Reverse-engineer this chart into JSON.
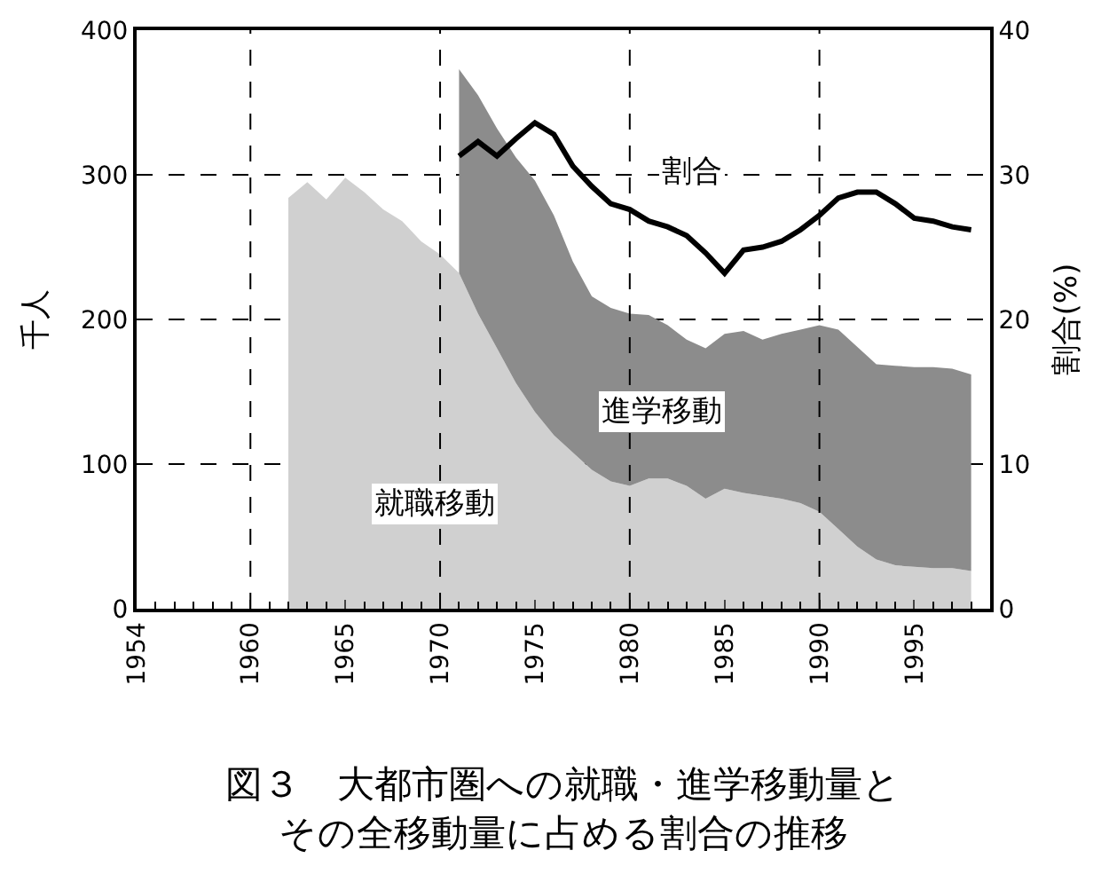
{
  "chart_data": {
    "type": "area",
    "title": "図３　大都市圏への就職・進学移動量とその全移動量に占める割合の推移",
    "ylabel": "千人",
    "y2label": "割合(%)",
    "stacked": true,
    "x": [
      1962,
      1963,
      1964,
      1965,
      1966,
      1967,
      1968,
      1969,
      1970,
      1971,
      1972,
      1973,
      1974,
      1975,
      1976,
      1977,
      1978,
      1979,
      1980,
      1981,
      1982,
      1983,
      1984,
      1985,
      1986,
      1987,
      1988,
      1989,
      1990,
      1991,
      1992,
      1993,
      1994,
      1995,
      1996,
      1997,
      1998
    ],
    "series": [
      {
        "name": "就職移動",
        "color": "#d0d0d0",
        "values": [
          284,
          295,
          283,
          298,
          288,
          276,
          268,
          254,
          245,
          232,
          204,
          180,
          156,
          136,
          120,
          108,
          96,
          88,
          85,
          90,
          90,
          85,
          76,
          83,
          80,
          78,
          76,
          73,
          67,
          55,
          43,
          34,
          30,
          29,
          28,
          28,
          26
        ]
      },
      {
        "name": "進学移動",
        "color": "#8c8c8c",
        "values": [
          null,
          null,
          null,
          null,
          null,
          null,
          null,
          null,
          null,
          141,
          151,
          152,
          156,
          160,
          152,
          132,
          120,
          120,
          119,
          113,
          106,
          101,
          104,
          107,
          112,
          108,
          114,
          120,
          129,
          138,
          138,
          135,
          138,
          138,
          139,
          138,
          136
        ]
      },
      {
        "name": "割合",
        "type": "line",
        "axis": "y2",
        "color": "#000000",
        "values": [
          null,
          null,
          null,
          null,
          null,
          null,
          null,
          null,
          null,
          31.3,
          32.3,
          31.3,
          32.5,
          33.6,
          32.8,
          30.6,
          29.2,
          28.0,
          27.6,
          26.8,
          26.4,
          25.8,
          24.6,
          23.2,
          24.8,
          25.0,
          25.4,
          26.2,
          27.2,
          28.4,
          28.8,
          28.8,
          28.0,
          27.0,
          26.8,
          26.4,
          26.2
        ]
      }
    ],
    "xlim": [
      1954,
      1999
    ],
    "xticks": [
      1954,
      1960,
      1965,
      1970,
      1975,
      1980,
      1985,
      1990,
      1995
    ],
    "ylim": [
      0,
      400
    ],
    "yticks": [
      0,
      100,
      200,
      300,
      400
    ],
    "y2lim": [
      0,
      40
    ],
    "y2ticks": [
      0,
      10,
      20,
      30,
      40
    ],
    "grid": "y",
    "line_style": "solid",
    "marker": "none",
    "ref_lines": [
      {
        "axis": "x",
        "value": 1960,
        "line_style": "dashed",
        "color": "#000000"
      },
      {
        "axis": "x",
        "value": 1970,
        "line_style": "dashed",
        "color": "#000000"
      },
      {
        "axis": "x",
        "value": 1980,
        "line_style": "dashed",
        "color": "#000000"
      },
      {
        "axis": "x",
        "value": 1990,
        "line_style": "dashed",
        "color": "#000000"
      }
    ]
  }
}
